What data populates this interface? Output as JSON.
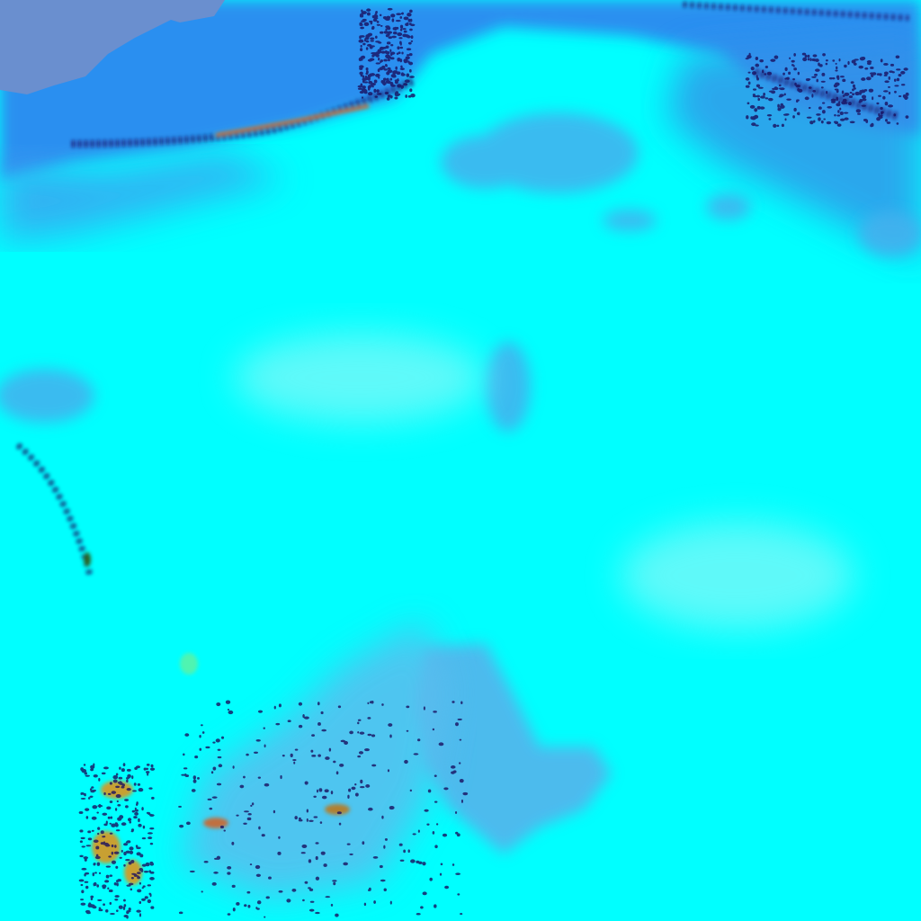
{
  "scene": {
    "type": "false-color satellite image",
    "colors": {
      "snow_ice": "#00ffff",
      "bright_snow": "#7ff8f8",
      "cloud_blue": "#1e90ff",
      "deep_blue": "#2f7fe0",
      "water": "#6a8fd0",
      "shadow_blue": "#4aa8e8",
      "rock_dark": "#1a1060",
      "vegetation": "#c8a030"
    }
  }
}
